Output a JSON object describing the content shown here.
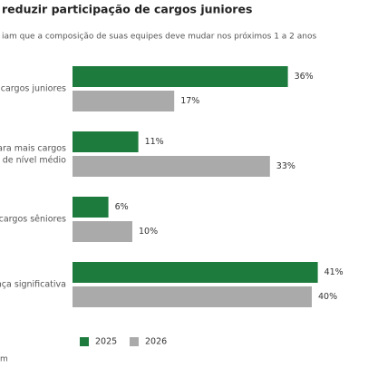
{
  "chart_data": {
    "type": "hbar",
    "title": "reduzir participação de cargos juniores",
    "subtitle": "iam que a composição de suas equipes deve mudar nos próximos 1 a 2 anos",
    "source": "m",
    "categories": [
      "s cargos juniores",
      "para mais cargos\nde nível médio",
      "s cargos sêniores",
      "ança significativa"
    ],
    "series": [
      {
        "name": "2025",
        "color": "#1e7b3e",
        "values": [
          36,
          11,
          6,
          41
        ],
        "value_labels": [
          "36%",
          "11%",
          "6%",
          "41%"
        ]
      },
      {
        "name": "2026",
        "color": "#aaaaaa",
        "values": [
          17,
          33,
          10,
          40
        ],
        "value_labels": [
          "17%",
          "33%",
          "10%",
          "40%"
        ]
      }
    ],
    "xlim": [
      0,
      50
    ],
    "legend": "bottom"
  }
}
